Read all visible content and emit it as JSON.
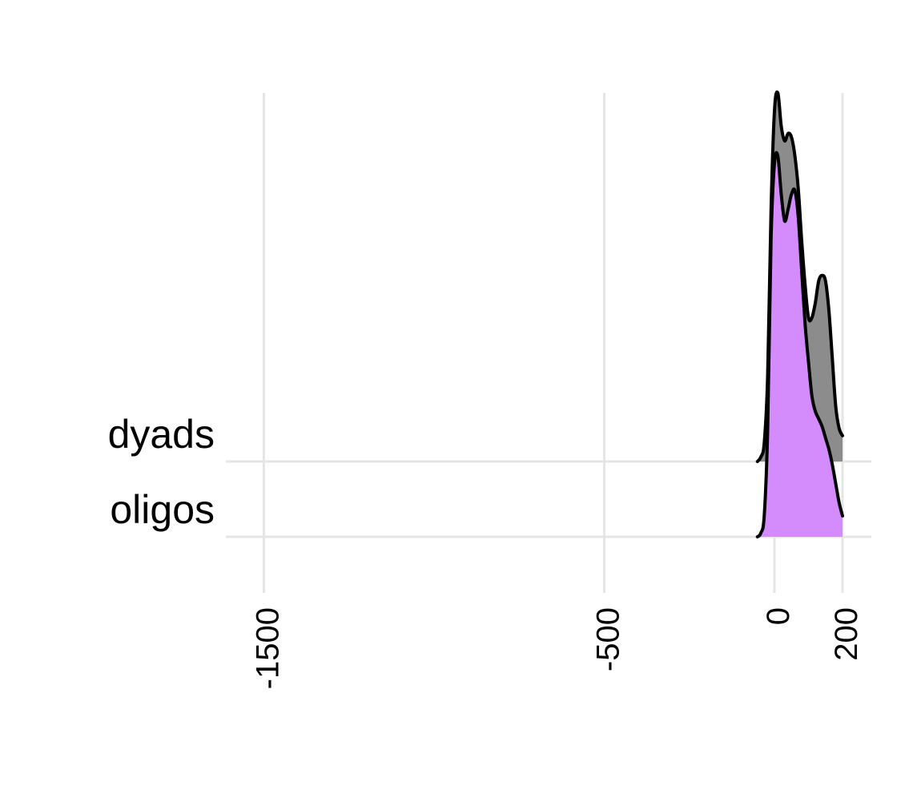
{
  "chart_data": {
    "type": "area",
    "subtype": "ridgeline-density",
    "title": "",
    "xlabel": "",
    "ylabel": "",
    "xlim": [
      -1800,
      280
    ],
    "x_breaks": [
      -1500,
      -500,
      0,
      200
    ],
    "x_tick_labels": [
      "-1500",
      "-500",
      "0",
      "200"
    ],
    "tick_label_orientation": "vertical",
    "grid": true,
    "grid_color": "#e5e5e5",
    "legend": "none",
    "series": [
      {
        "name": "dyads",
        "fill": "#8c8c8c",
        "stroke": "#000000",
        "x": [
          -50,
          -40,
          -30,
          -20,
          -10,
          0,
          10,
          20,
          30,
          40,
          50,
          60,
          70,
          80,
          90,
          100,
          110,
          120,
          130,
          140,
          150,
          160,
          170,
          180,
          190,
          200
        ],
        "density": [
          0.0,
          0.012,
          0.05,
          0.23,
          0.68,
          0.95,
          1.0,
          0.91,
          0.87,
          0.89,
          0.88,
          0.83,
          0.74,
          0.6,
          0.48,
          0.39,
          0.39,
          0.43,
          0.49,
          0.505,
          0.49,
          0.41,
          0.28,
          0.15,
          0.09,
          0.07
        ]
      },
      {
        "name": "oligos",
        "fill": "#d48bfb",
        "stroke": "#000000",
        "x": [
          -50,
          -40,
          -30,
          -20,
          -10,
          0,
          10,
          20,
          30,
          40,
          50,
          60,
          70,
          80,
          90,
          100,
          110,
          120,
          130,
          140,
          150,
          160,
          170,
          180,
          190,
          200
        ],
        "density": [
          0.0,
          0.01,
          0.055,
          0.28,
          0.78,
          0.98,
          1.0,
          0.9,
          0.83,
          0.86,
          0.9,
          0.91,
          0.84,
          0.7,
          0.56,
          0.46,
          0.37,
          0.33,
          0.31,
          0.29,
          0.26,
          0.23,
          0.19,
          0.14,
          0.09,
          0.055
        ]
      }
    ]
  }
}
